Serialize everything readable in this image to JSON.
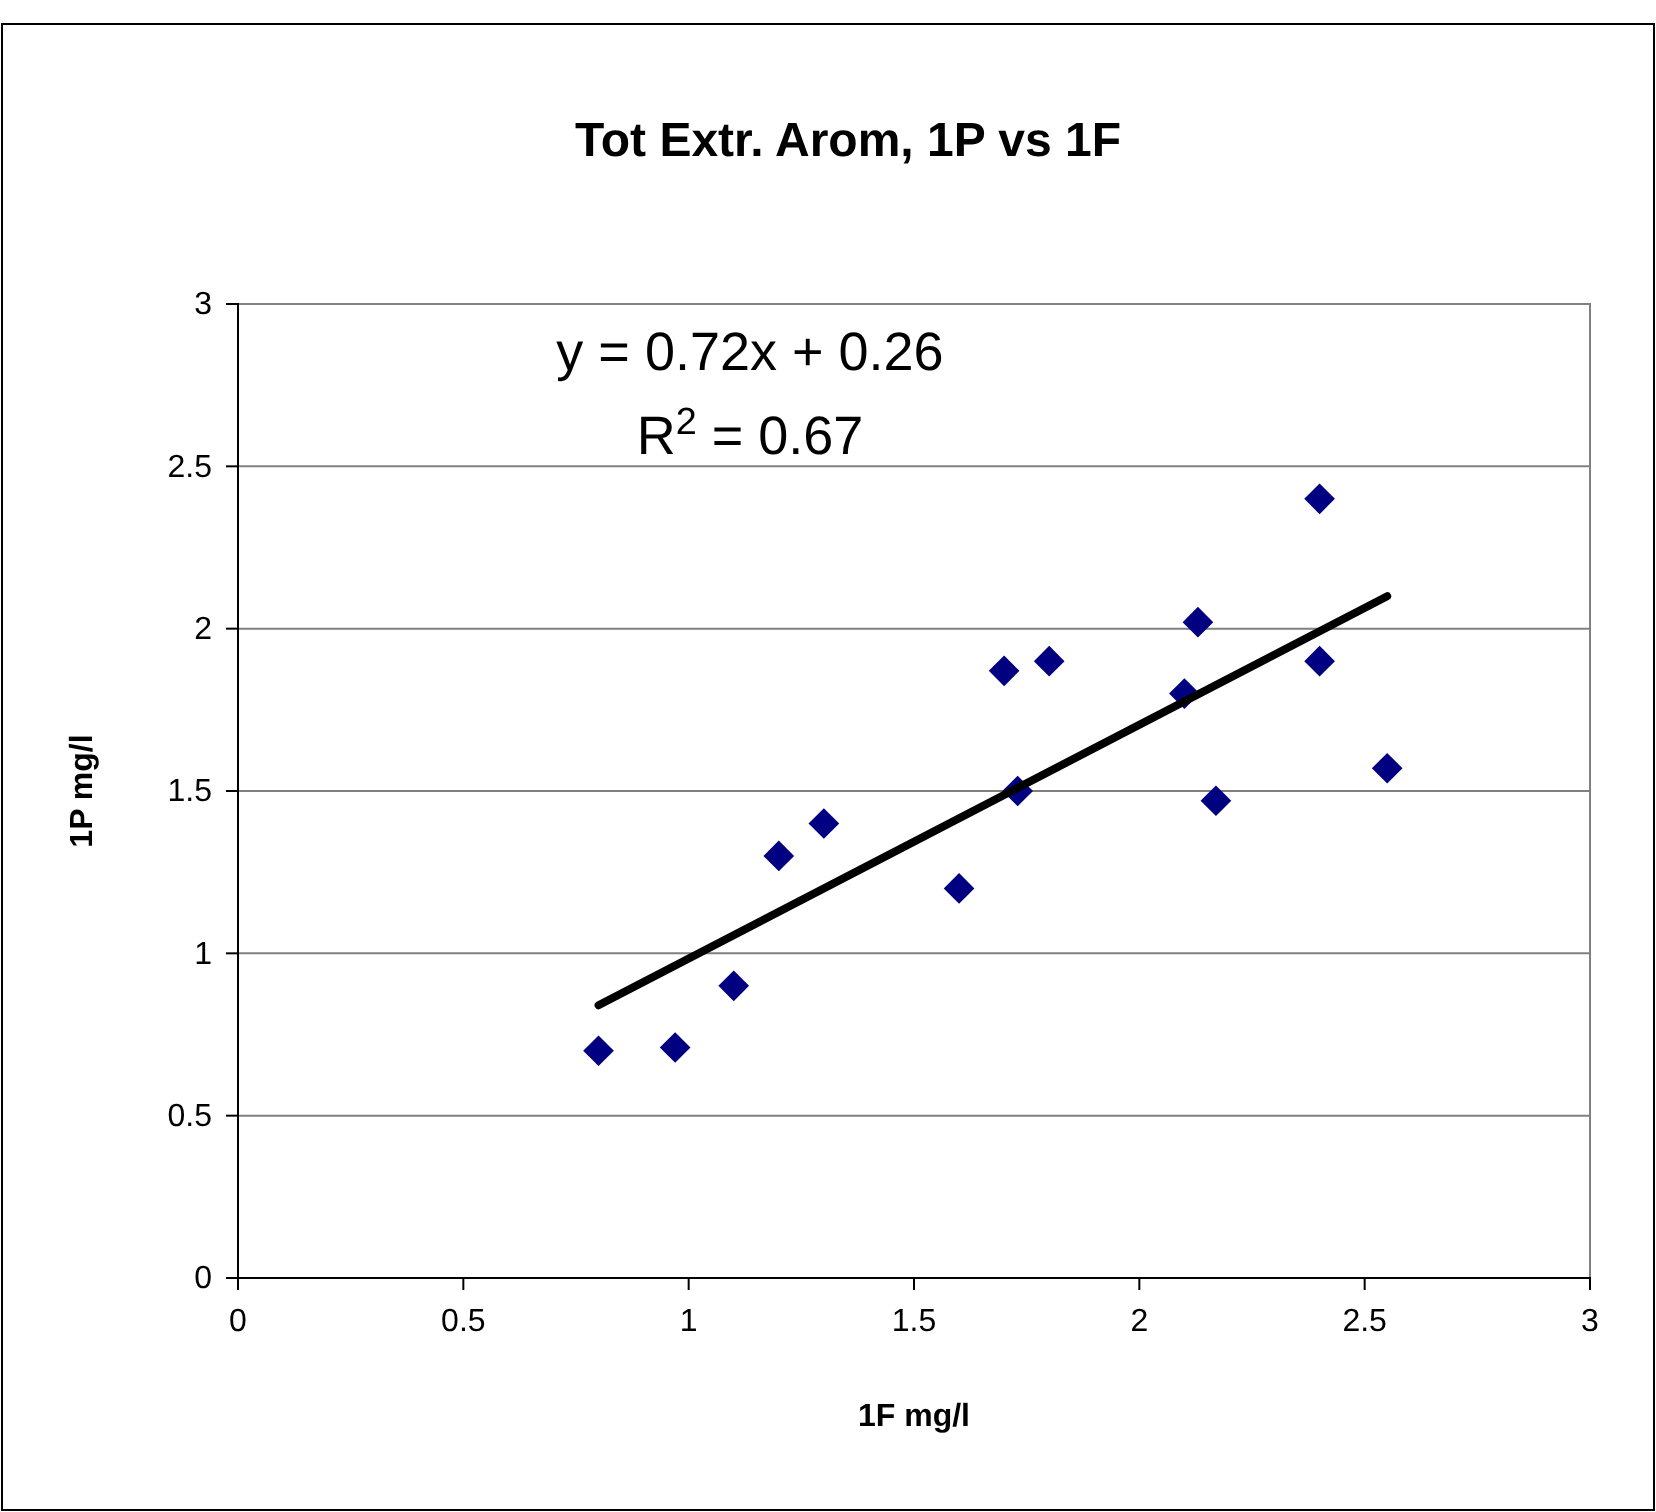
{
  "chart_data": {
    "type": "scatter",
    "title": "Tot Extr. Arom, 1P vs 1F",
    "xlabel": "1F mg/l",
    "ylabel": "1P mg/l",
    "annotations": [
      "y = 0.72x + 0.26",
      "R$^{2}$ = 0.67"
    ],
    "xlim": [
      0,
      3
    ],
    "xticks": [
      0,
      0.5,
      1,
      1.5,
      2,
      2.5,
      3
    ],
    "ylim": [
      0,
      3
    ],
    "yticks": [
      0,
      0.5,
      1,
      1.5,
      2,
      2.5,
      3
    ],
    "grid": "y",
    "marker": "diamond",
    "series": [
      {
        "color": "#000080",
        "x": [
          0.8,
          0.97,
          1.1,
          1.2,
          1.3,
          1.6,
          1.7,
          1.73,
          1.8,
          2.1,
          2.13,
          2.17,
          2.4,
          2.4,
          2.55
        ],
        "values": [
          0.7,
          0.71,
          0.9,
          1.3,
          1.4,
          1.2,
          1.87,
          1.5,
          1.9,
          1.8,
          2.02,
          1.47,
          2.4,
          1.9,
          1.57
        ]
      },
      {
        "type": "line",
        "color": "#000000",
        "marker": "none",
        "x": [
          0.8,
          2.55
        ],
        "values": [
          0.84,
          2.1
        ]
      }
    ]
  }
}
